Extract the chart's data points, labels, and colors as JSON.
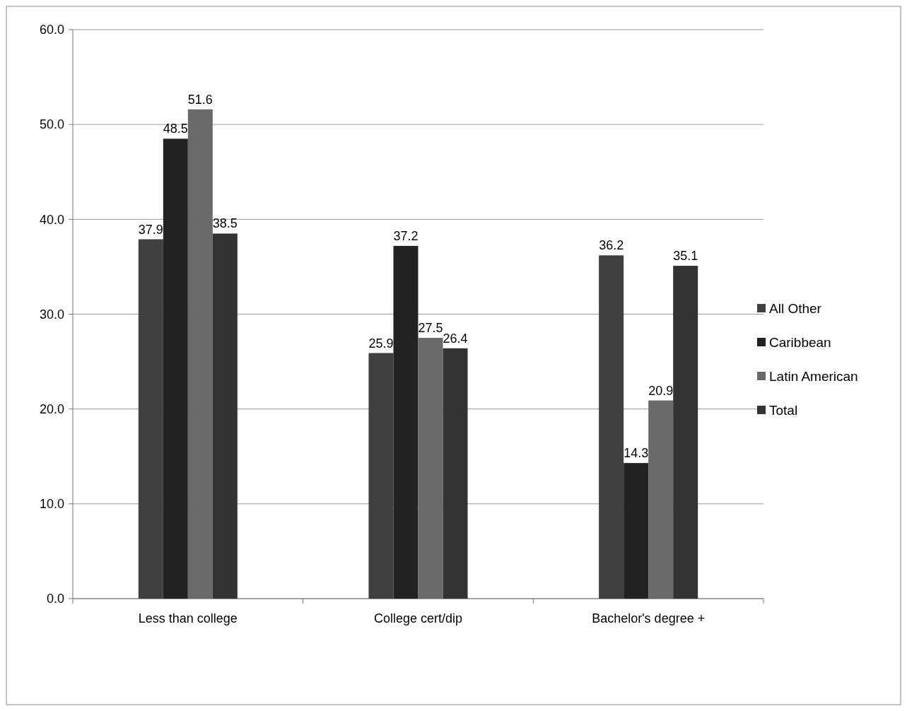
{
  "chart_data": {
    "type": "bar",
    "categories": [
      "Less than college",
      "College cert/dip",
      "Bachelor's degree +"
    ],
    "series": [
      {
        "name": "All Other",
        "color": "#404040",
        "values": [
          37.9,
          25.9,
          36.2
        ]
      },
      {
        "name": "Caribbean",
        "color": "#222222",
        "values": [
          48.5,
          37.2,
          14.3
        ]
      },
      {
        "name": "Latin American",
        "color": "#6a6a6a",
        "values": [
          51.6,
          27.5,
          20.9
        ]
      },
      {
        "name": "Total",
        "color": "#333333",
        "values": [
          38.5,
          26.4,
          35.1
        ]
      }
    ],
    "ylim": [
      0,
      60
    ],
    "yticks": [
      {
        "value": 0,
        "label": "0.0"
      },
      {
        "value": 10,
        "label": "10.0"
      },
      {
        "value": 20,
        "label": "20.0"
      },
      {
        "value": 30,
        "label": "30.0"
      },
      {
        "value": 40,
        "label": "40.0"
      },
      {
        "value": 50,
        "label": "50.0"
      },
      {
        "value": 60,
        "label": "60.0"
      }
    ],
    "grid": "y",
    "legend": "right",
    "data_labels": true
  }
}
